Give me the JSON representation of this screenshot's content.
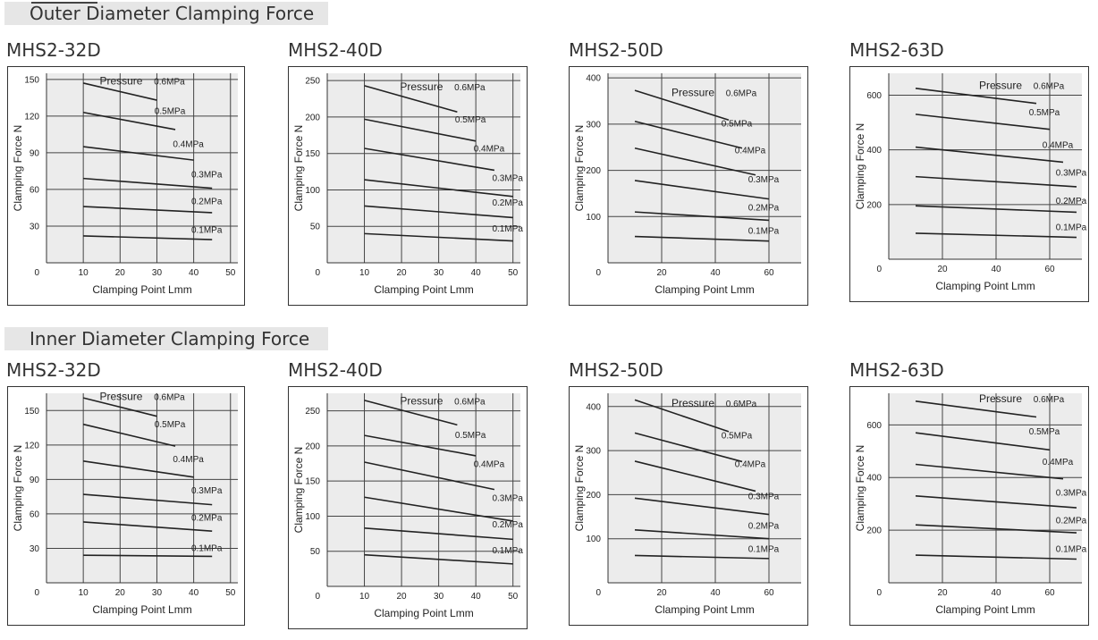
{
  "sections": [
    {
      "title": "Outer Diameter Clamping Force"
    },
    {
      "title": "Inner Diameter Clamping Force"
    }
  ],
  "colors": {
    "plot_bg": "#ececec",
    "grid": "#444444",
    "line": "#222222",
    "header_bg": "#e6e6e6"
  },
  "chart_data": [
    {
      "type": "line",
      "section": "Outer Diameter Clamping Force",
      "title": "MHS2-32D",
      "xlabel": "Clamping Point Lmm",
      "ylabel": "Clamping Force N",
      "xlim": [
        0,
        52
      ],
      "ylim": [
        0,
        155
      ],
      "xticks": [
        10,
        20,
        30,
        40,
        50
      ],
      "yticks": [
        30,
        60,
        90,
        120,
        150
      ],
      "origin_label": "0",
      "pressure_label": "Pressure",
      "series": [
        {
          "name": "0.6MPa",
          "x": [
            10,
            30
          ],
          "y": [
            147,
            133
          ]
        },
        {
          "name": "0.5MPa",
          "x": [
            10,
            35
          ],
          "y": [
            123,
            109
          ]
        },
        {
          "name": "0.4MPa",
          "x": [
            10,
            40
          ],
          "y": [
            95,
            84
          ]
        },
        {
          "name": "0.3MPa",
          "x": [
            10,
            45
          ],
          "y": [
            69,
            61
          ]
        },
        {
          "name": "0.2MPa",
          "x": [
            10,
            45
          ],
          "y": [
            46,
            41
          ]
        },
        {
          "name": "0.1MPa",
          "x": [
            10,
            45
          ],
          "y": [
            22,
            19
          ]
        }
      ]
    },
    {
      "type": "line",
      "section": "Outer Diameter Clamping Force",
      "title": "MHS2-40D",
      "xlabel": "Clamping Point Lmm",
      "ylabel": "Clamping Force N",
      "xlim": [
        0,
        52
      ],
      "ylim": [
        0,
        260
      ],
      "xticks": [
        10,
        20,
        30,
        40,
        50
      ],
      "yticks": [
        50,
        100,
        150,
        200,
        250
      ],
      "origin_label": "0",
      "pressure_label": "Pressure",
      "series": [
        {
          "name": "0.6MPa",
          "x": [
            10,
            35
          ],
          "y": [
            243,
            207
          ]
        },
        {
          "name": "0.5MPa",
          "x": [
            10,
            40
          ],
          "y": [
            197,
            167
          ]
        },
        {
          "name": "0.4MPa",
          "x": [
            10,
            45
          ],
          "y": [
            157,
            127
          ]
        },
        {
          "name": "0.3MPa",
          "x": [
            10,
            50
          ],
          "y": [
            114,
            91
          ]
        },
        {
          "name": "0.2MPa",
          "x": [
            10,
            50
          ],
          "y": [
            78,
            62
          ]
        },
        {
          "name": "0.1MPa",
          "x": [
            10,
            50
          ],
          "y": [
            40,
            30
          ]
        }
      ]
    },
    {
      "type": "line",
      "section": "Outer Diameter Clamping Force",
      "title": "MHS2-50D",
      "xlabel": "Clamping Point Lmm",
      "ylabel": "Clamping Force N",
      "xlim": [
        0,
        72
      ],
      "ylim": [
        0,
        410
      ],
      "xticks": [
        20,
        40,
        60
      ],
      "yticks": [
        100,
        200,
        300,
        400
      ],
      "origin_label": "0",
      "pressure_label": "Pressure",
      "series": [
        {
          "name": "0.6MPa",
          "x": [
            10,
            45
          ],
          "y": [
            373,
            309
          ]
        },
        {
          "name": "0.5MPa",
          "x": [
            10,
            50
          ],
          "y": [
            306,
            248
          ]
        },
        {
          "name": "0.4MPa",
          "x": [
            10,
            55
          ],
          "y": [
            248,
            190
          ]
        },
        {
          "name": "0.3MPa",
          "x": [
            10,
            60
          ],
          "y": [
            178,
            138
          ]
        },
        {
          "name": "0.2MPa",
          "x": [
            10,
            60
          ],
          "y": [
            110,
            92
          ]
        },
        {
          "name": "0.1MPa",
          "x": [
            10,
            60
          ],
          "y": [
            57,
            47
          ]
        }
      ]
    },
    {
      "type": "line",
      "section": "Outer Diameter Clamping Force",
      "title": "MHS2-63D",
      "xlabel": "Clamping Point Lmm",
      "ylabel": "Clamping Force N",
      "xlim": [
        0,
        72
      ],
      "ylim": [
        0,
        680
      ],
      "xticks": [
        20,
        40,
        60
      ],
      "yticks": [
        200,
        400,
        600
      ],
      "origin_label": "0",
      "pressure_label": "Pressure",
      "series": [
        {
          "name": "0.6MPa",
          "x": [
            10,
            55
          ],
          "y": [
            625,
            570
          ]
        },
        {
          "name": "0.5MPa",
          "x": [
            10,
            60
          ],
          "y": [
            530,
            475
          ]
        },
        {
          "name": "0.4MPa",
          "x": [
            10,
            65
          ],
          "y": [
            410,
            355
          ]
        },
        {
          "name": "0.3MPa",
          "x": [
            10,
            70
          ],
          "y": [
            302,
            265
          ]
        },
        {
          "name": "0.2MPa",
          "x": [
            10,
            70
          ],
          "y": [
            195,
            172
          ]
        },
        {
          "name": "0.1MPa",
          "x": [
            10,
            70
          ],
          "y": [
            95,
            80
          ]
        }
      ]
    },
    {
      "type": "line",
      "section": "Inner Diameter Clamping Force",
      "title": "MHS2-32D",
      "xlabel": "Clamping Point Lmm",
      "ylabel": "Clamping Force N",
      "xlim": [
        0,
        52
      ],
      "ylim": [
        0,
        165
      ],
      "xticks": [
        10,
        20,
        30,
        40,
        50
      ],
      "yticks": [
        30,
        60,
        90,
        120,
        150
      ],
      "origin_label": "0",
      "pressure_label": "Pressure",
      "series": [
        {
          "name": "0.6MPa",
          "x": [
            10,
            30
          ],
          "y": [
            161,
            145
          ]
        },
        {
          "name": "0.5MPa",
          "x": [
            10,
            35
          ],
          "y": [
            138,
            119
          ]
        },
        {
          "name": "0.4MPa",
          "x": [
            10,
            40
          ],
          "y": [
            106,
            92
          ]
        },
        {
          "name": "0.3MPa",
          "x": [
            10,
            45
          ],
          "y": [
            77,
            68
          ]
        },
        {
          "name": "0.2MPa",
          "x": [
            10,
            45
          ],
          "y": [
            53,
            45
          ]
        },
        {
          "name": "0.1MPa",
          "x": [
            10,
            45
          ],
          "y": [
            24,
            23
          ]
        }
      ]
    },
    {
      "type": "line",
      "section": "Inner Diameter Clamping Force",
      "title": "MHS2-40D",
      "xlabel": "Clamping Point Lmm",
      "ylabel": "Clamping Force N",
      "xlim": [
        0,
        52
      ],
      "ylim": [
        0,
        275
      ],
      "xticks": [
        10,
        20,
        30,
        40,
        50
      ],
      "yticks": [
        50,
        100,
        150,
        200,
        250
      ],
      "origin_label": "0",
      "pressure_label": "Pressure",
      "series": [
        {
          "name": "0.6MPa",
          "x": [
            10,
            35
          ],
          "y": [
            265,
            230
          ]
        },
        {
          "name": "0.5MPa",
          "x": [
            10,
            40
          ],
          "y": [
            215,
            186
          ]
        },
        {
          "name": "0.4MPa",
          "x": [
            10,
            45
          ],
          "y": [
            177,
            138
          ]
        },
        {
          "name": "0.3MPa",
          "x": [
            10,
            50
          ],
          "y": [
            127,
            93
          ]
        },
        {
          "name": "0.2MPa",
          "x": [
            10,
            50
          ],
          "y": [
            83,
            67
          ]
        },
        {
          "name": "0.1MPa",
          "x": [
            10,
            50
          ],
          "y": [
            45,
            32
          ]
        }
      ]
    },
    {
      "type": "line",
      "section": "Inner Diameter Clamping Force",
      "title": "MHS2-50D",
      "xlabel": "Clamping Point Lmm",
      "ylabel": "Clamping Force N",
      "xlim": [
        0,
        72
      ],
      "ylim": [
        0,
        430
      ],
      "xticks": [
        20,
        40,
        60
      ],
      "yticks": [
        100,
        200,
        300,
        400
      ],
      "origin_label": "0",
      "pressure_label": "Pressure",
      "series": [
        {
          "name": "0.6MPa",
          "x": [
            10,
            45
          ],
          "y": [
            415,
            343
          ]
        },
        {
          "name": "0.5MPa",
          "x": [
            10,
            50
          ],
          "y": [
            340,
            275
          ]
        },
        {
          "name": "0.4MPa",
          "x": [
            10,
            55
          ],
          "y": [
            276,
            208
          ]
        },
        {
          "name": "0.3MPa",
          "x": [
            10,
            60
          ],
          "y": [
            192,
            155
          ]
        },
        {
          "name": "0.2MPa",
          "x": [
            10,
            60
          ],
          "y": [
            120,
            100
          ]
        },
        {
          "name": "0.1MPa",
          "x": [
            10,
            60
          ],
          "y": [
            62,
            55
          ]
        }
      ]
    },
    {
      "type": "line",
      "section": "Inner Diameter Clamping Force",
      "title": "MHS2-63D",
      "xlabel": "Clamping Point Lmm",
      "ylabel": "Clamping Force N",
      "xlim": [
        0,
        72
      ],
      "ylim": [
        0,
        720
      ],
      "xticks": [
        20,
        40,
        60
      ],
      "yticks": [
        200,
        400,
        600
      ],
      "origin_label": "0",
      "pressure_label": "Pressure",
      "series": [
        {
          "name": "0.6MPa",
          "x": [
            10,
            55
          ],
          "y": [
            690,
            630
          ]
        },
        {
          "name": "0.5MPa",
          "x": [
            10,
            60
          ],
          "y": [
            570,
            505
          ]
        },
        {
          "name": "0.4MPa",
          "x": [
            10,
            65
          ],
          "y": [
            450,
            395
          ]
        },
        {
          "name": "0.3MPa",
          "x": [
            10,
            70
          ],
          "y": [
            330,
            285
          ]
        },
        {
          "name": "0.2MPa",
          "x": [
            10,
            70
          ],
          "y": [
            220,
            190
          ]
        },
        {
          "name": "0.1MPa",
          "x": [
            10,
            70
          ],
          "y": [
            105,
            90
          ]
        }
      ]
    }
  ]
}
